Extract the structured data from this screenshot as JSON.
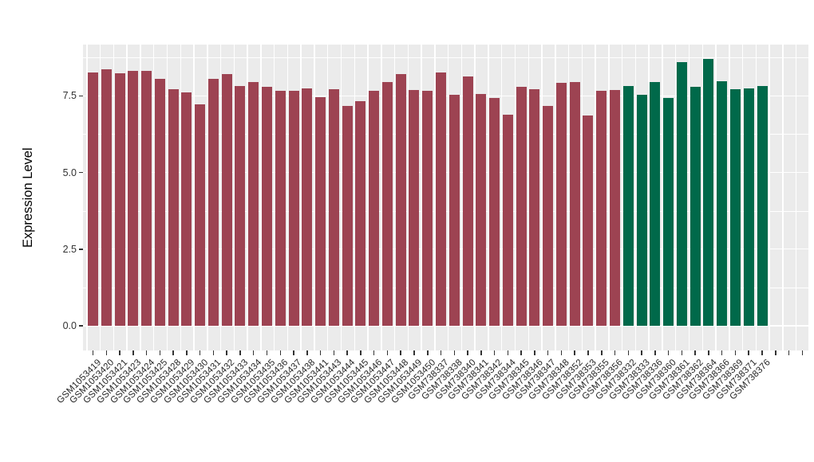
{
  "chart_data": {
    "type": "bar",
    "title": "",
    "xlabel": "",
    "ylabel": "Expression Level",
    "yticks": [
      "0.0",
      "2.5",
      "5.0",
      "7.5"
    ],
    "ylim": [
      0,
      9.2
    ],
    "grid": true,
    "legend": false,
    "panel_background": "#EBEBEB",
    "gridline_color": "#FFFFFF",
    "axis_text_color": "#333333",
    "groups": [
      {
        "color": "#9D4352",
        "categories_from": 0,
        "categories_to": 39
      },
      {
        "color": "#00694A",
        "categories_from": 40,
        "categories_to": 50
      }
    ],
    "categories": [
      "GSM1053419",
      "GSM1053420",
      "GSM1053421",
      "GSM1053423",
      "GSM1053424",
      "GSM1053425",
      "GSM1053428",
      "GSM1053429",
      "GSM1053430",
      "GSM1053431",
      "GSM1053432",
      "GSM1053433",
      "GSM1053434",
      "GSM1053435",
      "GSM1053436",
      "GSM1053437",
      "GSM1053438",
      "GSM1053441",
      "GSM1053443",
      "GSM1053444",
      "GSM1053445",
      "GSM1053446",
      "GSM1053447",
      "GSM1053448",
      "GSM1053449",
      "GSM1053450",
      "GSM738337",
      "GSM738338",
      "GSM738340",
      "GSM738341",
      "GSM738342",
      "GSM738344",
      "GSM738345",
      "GSM738346",
      "GSM738347",
      "GSM738348",
      "GSM738352",
      "GSM738353",
      "GSM738355",
      "GSM738356",
      "GSM738332",
      "GSM738333",
      "GSM738336",
      "GSM738360",
      "GSM738361",
      "GSM738362",
      "GSM738364",
      "GSM738366",
      "GSM738369",
      "GSM738371",
      "GSM738376"
    ],
    "values": [
      8.26,
      8.37,
      8.24,
      8.3,
      8.3,
      8.04,
      7.72,
      7.6,
      7.22,
      8.06,
      8.21,
      7.83,
      7.96,
      7.78,
      7.67,
      7.66,
      7.74,
      7.45,
      7.71,
      7.17,
      7.32,
      7.67,
      7.95,
      8.21,
      7.7,
      7.67,
      8.26,
      7.52,
      8.13,
      7.57,
      7.43,
      6.89,
      7.78,
      7.72,
      7.17,
      7.93,
      7.96,
      6.85,
      7.67,
      7.69,
      7.82,
      7.52,
      7.95,
      7.43,
      8.59,
      7.78,
      8.7,
      7.98,
      7.72,
      7.74,
      7.82
    ]
  }
}
